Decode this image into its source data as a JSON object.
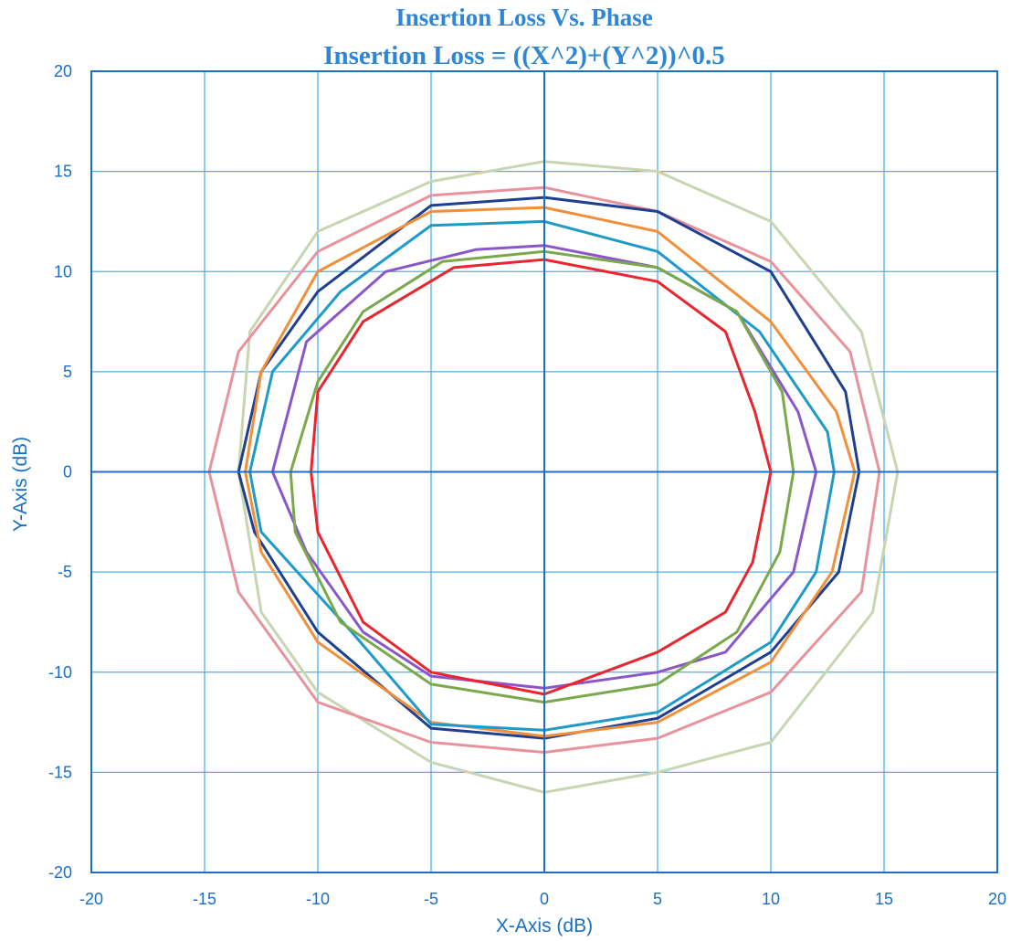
{
  "chart_data": {
    "type": "line",
    "title": "Insertion Loss Vs. Phase",
    "subtitle": "Insertion Loss = ((X^2)+(Y^2))^0.5",
    "xlabel": "X-Axis (dB)",
    "ylabel": "Y-Axis (dB)",
    "xlim": [
      -20,
      20
    ],
    "ylim": [
      -20,
      20
    ],
    "x_ticks": [
      "-20",
      "-15",
      "-10",
      "-5",
      "0",
      "5",
      "10",
      "15",
      "20"
    ],
    "y_ticks": [
      "-20",
      "-15",
      "-10",
      "-5",
      "0",
      "5",
      "10",
      "15",
      "20"
    ],
    "x_tick_values": [
      -20,
      -15,
      -10,
      -5,
      0,
      5,
      10,
      15,
      20
    ],
    "y_tick_values": [
      -20,
      -15,
      -10,
      -5,
      0,
      5,
      10,
      15,
      20
    ],
    "grid": true,
    "legend": false,
    "series": [
      {
        "color": "#c7d5b0",
        "points": [
          [
            0,
            15.5
          ],
          [
            5,
            15
          ],
          [
            10,
            12.5
          ],
          [
            14,
            7
          ],
          [
            15.6,
            0
          ],
          [
            14.5,
            -7
          ],
          [
            10,
            -13.5
          ],
          [
            5,
            -15
          ],
          [
            0,
            -16
          ],
          [
            -5,
            -14.5
          ],
          [
            -10,
            -11
          ],
          [
            -12.5,
            -7
          ],
          [
            -13.5,
            0
          ],
          [
            -13,
            7
          ],
          [
            -10,
            12
          ],
          [
            -5,
            14.5
          ],
          [
            0,
            15.5
          ]
        ]
      },
      {
        "color": "#e8939b",
        "points": [
          [
            0,
            14.2
          ],
          [
            5,
            13
          ],
          [
            10,
            10.5
          ],
          [
            13.5,
            6
          ],
          [
            14.8,
            0
          ],
          [
            14,
            -6
          ],
          [
            10,
            -11
          ],
          [
            5,
            -13.3
          ],
          [
            0,
            -14
          ],
          [
            -5,
            -13.5
          ],
          [
            -10,
            -11.5
          ],
          [
            -13.5,
            -6
          ],
          [
            -14.8,
            0
          ],
          [
            -13.5,
            6
          ],
          [
            -10,
            11
          ],
          [
            -5,
            13.8
          ],
          [
            0,
            14.2
          ]
        ]
      },
      {
        "color": "#1f3f8f",
        "points": [
          [
            0,
            13.7
          ],
          [
            5,
            13
          ],
          [
            10,
            10
          ],
          [
            13.3,
            4
          ],
          [
            13.9,
            0
          ],
          [
            13,
            -5
          ],
          [
            10,
            -9
          ],
          [
            5,
            -12.3
          ],
          [
            0,
            -13.3
          ],
          [
            -5,
            -12.8
          ],
          [
            -10,
            -8
          ],
          [
            -12.8,
            -3
          ],
          [
            -13.5,
            0
          ],
          [
            -12.5,
            5
          ],
          [
            -10,
            9
          ],
          [
            -5,
            13.3
          ],
          [
            0,
            13.7
          ]
        ]
      },
      {
        "color": "#f18f3b",
        "points": [
          [
            0,
            13.2
          ],
          [
            5,
            12
          ],
          [
            10,
            7.5
          ],
          [
            12.9,
            3
          ],
          [
            13.7,
            0
          ],
          [
            12.7,
            -5
          ],
          [
            10,
            -9.5
          ],
          [
            5,
            -12.5
          ],
          [
            0,
            -13.2
          ],
          [
            -5,
            -12.5
          ],
          [
            -10,
            -8.5
          ],
          [
            -12.5,
            -4
          ],
          [
            -13.2,
            0
          ],
          [
            -12.5,
            5
          ],
          [
            -10,
            10
          ],
          [
            -5,
            13
          ],
          [
            0,
            13.2
          ]
        ]
      },
      {
        "color": "#1e9ac9",
        "points": [
          [
            0,
            12.5
          ],
          [
            5,
            11
          ],
          [
            9.5,
            7
          ],
          [
            12.5,
            2
          ],
          [
            12.8,
            0
          ],
          [
            12,
            -5
          ],
          [
            10,
            -8.5
          ],
          [
            5,
            -12
          ],
          [
            0,
            -12.9
          ],
          [
            -5,
            -12.6
          ],
          [
            -8.5,
            -8
          ],
          [
            -12.5,
            -3
          ],
          [
            -13,
            0
          ],
          [
            -12,
            5
          ],
          [
            -9,
            9
          ],
          [
            -5,
            12.3
          ],
          [
            0,
            12.5
          ]
        ]
      },
      {
        "color": "#8b56c9",
        "points": [
          [
            0,
            11.3
          ],
          [
            5,
            10.2
          ],
          [
            8.5,
            8
          ],
          [
            11.2,
            3
          ],
          [
            12,
            0
          ],
          [
            11,
            -5
          ],
          [
            8,
            -9
          ],
          [
            5,
            -10
          ],
          [
            0,
            -10.8
          ],
          [
            -5,
            -10.2
          ],
          [
            -8,
            -8
          ],
          [
            -10.5,
            -4
          ],
          [
            -12,
            0
          ],
          [
            -10.5,
            6.5
          ],
          [
            -7,
            10
          ],
          [
            -3,
            11.1
          ],
          [
            0,
            11.3
          ]
        ]
      },
      {
        "color": "#7aa84a",
        "points": [
          [
            0,
            11
          ],
          [
            5,
            10.2
          ],
          [
            8.5,
            8
          ],
          [
            10.5,
            4
          ],
          [
            11,
            0
          ],
          [
            10.4,
            -4
          ],
          [
            8.5,
            -8
          ],
          [
            5,
            -10.6
          ],
          [
            0,
            -11.5
          ],
          [
            -5,
            -10.6
          ],
          [
            -9,
            -7.5
          ],
          [
            -11,
            -3
          ],
          [
            -11.2,
            0
          ],
          [
            -10,
            4.5
          ],
          [
            -8,
            8
          ],
          [
            -4.5,
            10.5
          ],
          [
            0,
            11
          ]
        ]
      },
      {
        "color": "#e8262f",
        "points": [
          [
            0,
            10.6
          ],
          [
            5,
            9.5
          ],
          [
            8,
            7
          ],
          [
            9.3,
            3
          ],
          [
            10,
            0
          ],
          [
            9.2,
            -4.5
          ],
          [
            8,
            -7
          ],
          [
            5,
            -9
          ],
          [
            0,
            -11.1
          ],
          [
            -5,
            -10
          ],
          [
            -8,
            -7.5
          ],
          [
            -10,
            -3
          ],
          [
            -10.3,
            0
          ],
          [
            -10,
            4
          ],
          [
            -8,
            7.5
          ],
          [
            -4,
            10.2
          ],
          [
            0,
            10.6
          ]
        ]
      }
    ]
  }
}
